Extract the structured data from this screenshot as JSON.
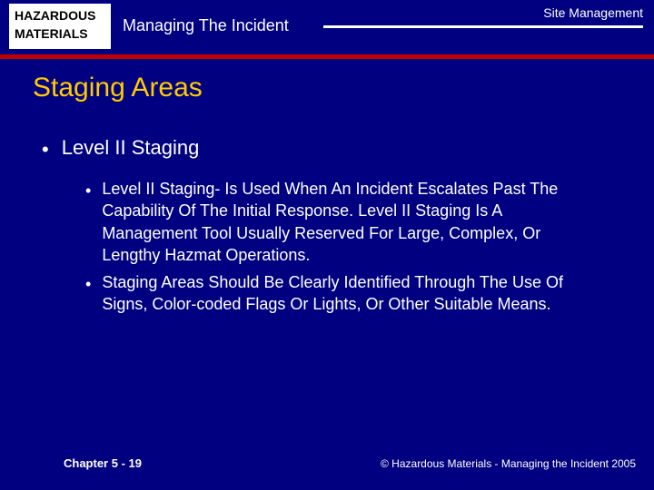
{
  "colors": {
    "background": "#000080",
    "accent_red": "#c00000",
    "title_yellow": "#ffcc00",
    "text_white": "#ffffff",
    "badge_bg": "#ffffff",
    "badge_text": "#000000"
  },
  "header": {
    "badge_line1": "HAZARDOUS",
    "badge_line2": "MATERIALS",
    "course_title": "Managing The Incident",
    "section_title": "Site Management"
  },
  "slide": {
    "title": "Staging Areas",
    "bullets_l1": [
      {
        "text": "Level II Staging"
      }
    ],
    "bullets_l2": [
      {
        "text": "Level II Staging- Is Used When An Incident Escalates Past The Capability Of The Initial Response. Level II Staging Is A Management Tool Usually Reserved For Large, Complex, Or Lengthy Hazmat Operations."
      },
      {
        "text": "Staging Areas Should Be Clearly Identified Through The Use Of Signs, Color-coded Flags Or Lights, Or Other Suitable Means."
      }
    ]
  },
  "footer": {
    "left": "Chapter 5 - 19",
    "right": "© Hazardous Materials - Managing the Incident 2005"
  }
}
